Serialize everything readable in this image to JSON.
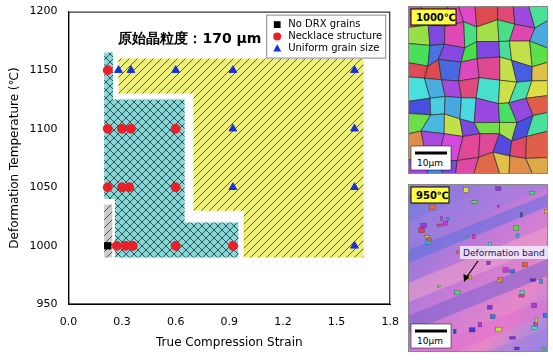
{
  "chart_data": {
    "type": "scatter",
    "xlabel": "True Compression Strain",
    "ylabel": "Deformation Temperature (℃)",
    "xlim": [
      0,
      1.8
    ],
    "xticks": [
      {
        "value": 0,
        "label": "0.0"
      },
      0.3,
      0.6,
      0.9,
      1.2,
      1.5,
      1.8
    ],
    "ylim": [
      950,
      1200
    ],
    "yticks": [
      950,
      1000,
      1050,
      1100,
      1150,
      1200
    ],
    "grid": false,
    "legend": "top-right",
    "annotations": [
      {
        "text": "原始晶粒度：170 μm",
        "x": 0.28,
        "y": 1176
      }
    ],
    "regions": [
      {
        "color": "#eef07a",
        "line_style": "hatch",
        "points": [
          [
            0.28,
            1160
          ],
          [
            1.65,
            1160
          ],
          [
            1.65,
            990
          ],
          [
            0.98,
            990
          ],
          [
            0.98,
            1030
          ],
          [
            0.7,
            1030
          ],
          [
            0.7,
            1130
          ],
          [
            0.28,
            1130
          ]
        ]
      },
      {
        "color": "#86d8d8",
        "line_style": "crosshatch",
        "points": [
          [
            0.2,
            1165
          ],
          [
            0.25,
            1165
          ],
          [
            0.25,
            1125
          ],
          [
            0.65,
            1125
          ],
          [
            0.65,
            1020
          ],
          [
            0.95,
            1020
          ],
          [
            0.95,
            990
          ],
          [
            0.26,
            990
          ],
          [
            0.26,
            1040
          ],
          [
            0.2,
            1040
          ]
        ]
      },
      {
        "color": "#cccccc",
        "line_style": "hatch",
        "points": [
          [
            0.2,
            990
          ],
          [
            0.245,
            990
          ],
          [
            0.245,
            1035
          ],
          [
            0.2,
            1035
          ]
        ]
      }
    ],
    "series": [
      {
        "name": "No DRX grains",
        "color": "#000000",
        "marker": "square",
        "x": [
          0.22
        ],
        "values": [
          1000
        ]
      },
      {
        "name": "Necklace structure",
        "color": "#e8202a",
        "marker": "circle",
        "x": [
          0.27,
          0.32,
          0.36,
          0.6,
          0.92,
          0.22,
          0.3,
          0.34,
          0.6,
          0.22,
          0.3,
          0.35,
          0.6,
          0.22
        ],
        "values": [
          1000,
          1000,
          1000,
          1000,
          1000,
          1050,
          1050,
          1050,
          1050,
          1100,
          1100,
          1100,
          1100,
          1150
        ]
      },
      {
        "name": "Uniform grain size",
        "color": "#1a2fd8",
        "marker": "triangle",
        "x": [
          1.6,
          0.92,
          1.6,
          0.92,
          1.6,
          0.28,
          0.35,
          0.6,
          0.92,
          1.6
        ],
        "values": [
          1000,
          1050,
          1050,
          1100,
          1100,
          1150,
          1150,
          1150,
          1150,
          1150
        ]
      }
    ]
  },
  "panels": [
    {
      "label": "1000℃",
      "scale_bar": "10μm"
    },
    {
      "label": "950℃",
      "scale_bar": "10μm",
      "annotation": "Deformation band"
    }
  ]
}
